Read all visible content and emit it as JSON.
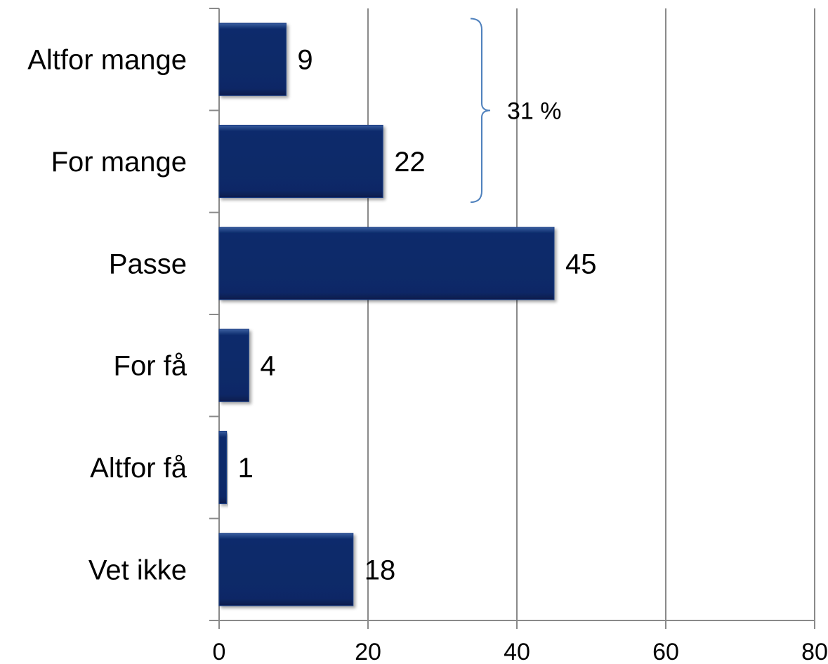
{
  "chart_data": {
    "type": "bar",
    "orientation": "horizontal",
    "categories": [
      "Altfor mange",
      "For mange",
      "Passe",
      "For få",
      "Altfor få",
      "Vet ikke"
    ],
    "values": [
      9,
      22,
      45,
      4,
      1,
      18
    ],
    "data_labels": [
      "9",
      "22",
      "45",
      "4",
      "1",
      "18"
    ],
    "xlim": [
      0,
      80
    ],
    "xticks": [
      0,
      20,
      40,
      60,
      80
    ],
    "xtick_labels": [
      "0",
      "20",
      "40",
      "60",
      "80"
    ],
    "grid": true,
    "bar_color": "#0b2a6a",
    "annotation": {
      "text": "31 %",
      "spans_categories": [
        "Altfor mange",
        "For mange"
      ],
      "bracket_color": "#4f81bd"
    }
  }
}
